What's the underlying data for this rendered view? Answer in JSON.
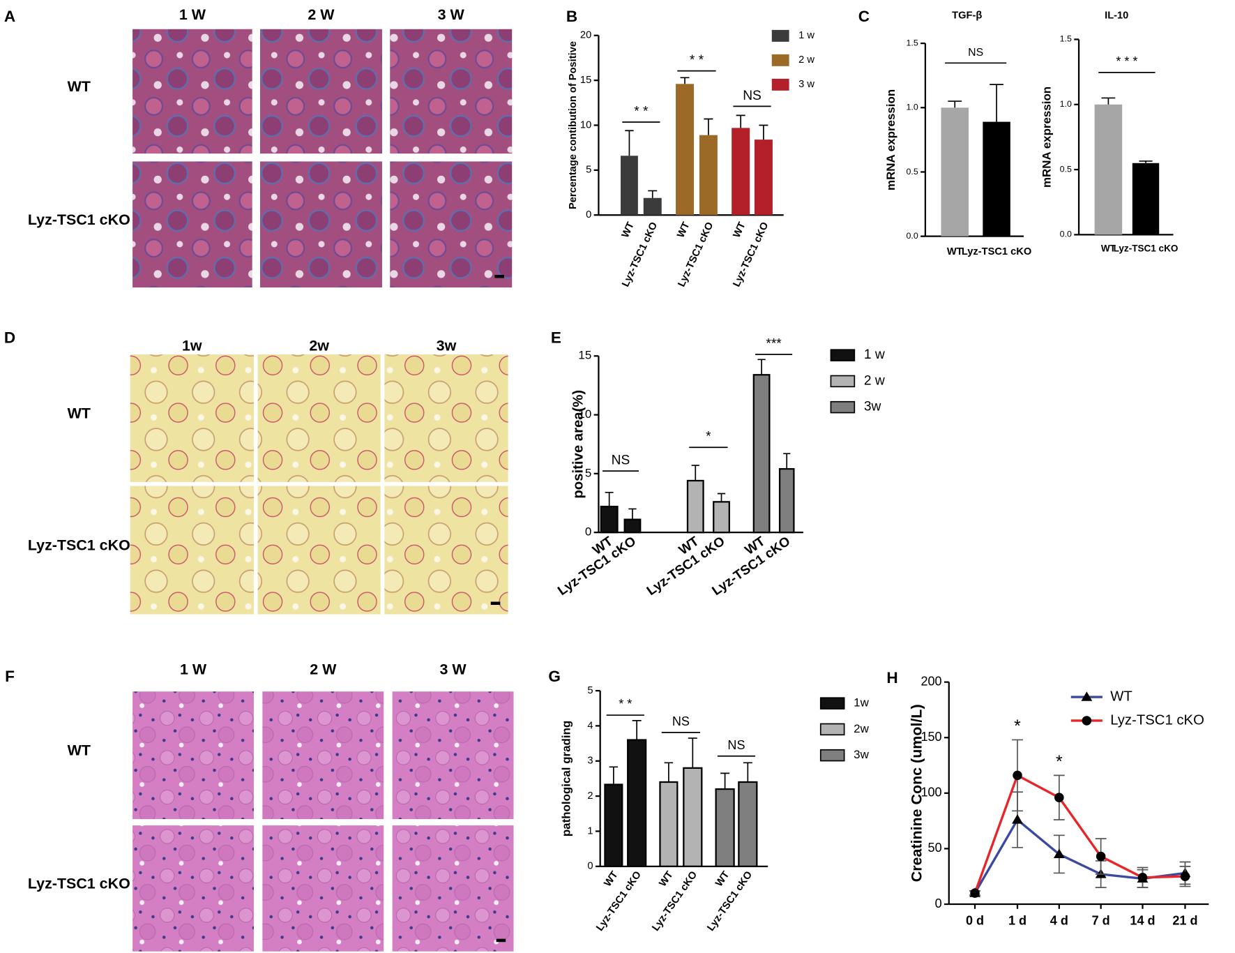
{
  "micrographs": [
    {
      "letter": "A",
      "columns": [
        "1 W",
        "2 W",
        "3 W"
      ],
      "rows": [
        "WT",
        "Lyz-TSC1 cKO"
      ]
    },
    {
      "letter": "D",
      "columns": [
        "1w",
        "2w",
        "3w"
      ],
      "rows": [
        "WT",
        "Lyz-TSC1 cKO"
      ]
    },
    {
      "letter": "F",
      "columns": [
        "1 W",
        "2 W",
        "3 W"
      ],
      "rows": [
        "WT",
        "Lyz-TSC1 cKO"
      ]
    }
  ],
  "chart_data": [
    {
      "type": "groupbar",
      "letter": "B",
      "ylabel": "Percentage contibution of Positive",
      "ylim": [
        0,
        20
      ],
      "yticks": [
        0,
        5,
        10,
        15,
        20
      ],
      "series": [
        {
          "name": "1 w",
          "color": "#3b3b3b",
          "categories": [
            "WT",
            "Lyz-TSC1 cKO"
          ],
          "values": [
            6.6,
            1.9
          ],
          "errors": [
            2.8,
            0.8
          ]
        },
        {
          "name": "2 w",
          "color": "#9b6a27",
          "categories": [
            "WT",
            "Lyz-TSC1 cKO"
          ],
          "values": [
            14.6,
            8.9
          ],
          "errors": [
            0.7,
            1.8
          ]
        },
        {
          "name": "3 w",
          "color": "#b3202a",
          "categories": [
            "WT",
            "Lyz-TSC1 cKO"
          ],
          "values": [
            9.7,
            8.4
          ],
          "errors": [
            1.4,
            1.6
          ]
        }
      ],
      "annotations": [
        "* *",
        "* *",
        "NS"
      ]
    },
    {
      "type": "bar",
      "letter": "C",
      "title": "TGF-β",
      "ylabel": "mRNA expression",
      "ylim": [
        0,
        1.5
      ],
      "yticks": [
        {
          "value": 0,
          "label": "0.0"
        },
        {
          "value": 0.5,
          "label": "0.5"
        },
        {
          "value": 1,
          "label": "1.0"
        },
        {
          "value": 1.5,
          "label": "1.5"
        }
      ],
      "categories": [
        "WT",
        "Lyz-TSC1 cKO"
      ],
      "values": [
        1.0,
        0.89
      ],
      "errors": [
        0.05,
        0.29
      ],
      "colors": [
        "#a6a6a6",
        "#000000"
      ],
      "annotations": [
        "NS"
      ]
    },
    {
      "type": "bar",
      "title": "IL-10",
      "ylabel": "mRNA expression",
      "ylim": [
        0,
        1.5
      ],
      "yticks": [
        {
          "value": 0,
          "label": "0.0"
        },
        {
          "value": 0.5,
          "label": "0.5"
        },
        {
          "value": 1,
          "label": "1.0"
        },
        {
          "value": 1.5,
          "label": "1.5"
        }
      ],
      "categories": [
        "WT",
        "Lyz-TSC1 cKO"
      ],
      "values": [
        1.0,
        0.55
      ],
      "errors": [
        0.05,
        0.015
      ],
      "colors": [
        "#a6a6a6",
        "#000000"
      ],
      "annotations": [
        "* * *"
      ]
    },
    {
      "type": "groupbar",
      "letter": "E",
      "ylabel": "positive area(%)",
      "edgecolor": "#000000",
      "ylim": [
        0,
        15
      ],
      "yticks": [
        0,
        5,
        10,
        15
      ],
      "series": [
        {
          "name": "1 w",
          "color": "#111111",
          "categories": [
            "WT",
            "Lyz-TSC1 cKO"
          ],
          "values": [
            2.2,
            1.1
          ],
          "errors": [
            1.2,
            0.9
          ]
        },
        {
          "name": "2 w",
          "color": "#b3b3b3",
          "categories": [
            "WT",
            "Lyz-TSC1 cKO"
          ],
          "values": [
            4.4,
            2.6
          ],
          "errors": [
            1.3,
            0.7
          ]
        },
        {
          "name": "3w",
          "color": "#7f7f7f",
          "categories": [
            "WT",
            "Lyz-TSC1 cKO"
          ],
          "values": [
            13.4,
            5.4
          ],
          "errors": [
            1.3,
            1.3
          ]
        }
      ],
      "annotations": [
        "NS",
        "*",
        "***"
      ]
    },
    {
      "type": "groupbar",
      "letter": "G",
      "ylabel": "pathological grading",
      "edgecolor": "#000000",
      "ylim": [
        0,
        5
      ],
      "yticks": [
        0,
        1,
        2,
        3,
        4,
        5
      ],
      "series": [
        {
          "name": "1w",
          "color": "#111111",
          "categories": [
            "WT",
            "Lyz-TSC1 cKO"
          ],
          "values": [
            2.33,
            3.6
          ],
          "errors": [
            0.5,
            0.55
          ]
        },
        {
          "name": "2w",
          "color": "#b3b3b3",
          "categories": [
            "WT",
            "Lyz-TSC1 cKO"
          ],
          "values": [
            2.4,
            2.8
          ],
          "errors": [
            0.55,
            0.85
          ]
        },
        {
          "name": "3w",
          "color": "#7f7f7f",
          "categories": [
            "WT",
            "Lyz-TSC1 cKO"
          ],
          "values": [
            2.2,
            2.4
          ],
          "errors": [
            0.45,
            0.55
          ]
        }
      ],
      "annotations": [
        "* *",
        "NS",
        "NS"
      ]
    },
    {
      "type": "line",
      "letter": "H",
      "ylabel": "Creatinine Conc (umol/L)",
      "ylim": [
        0,
        200
      ],
      "yticks": [
        0,
        50,
        100,
        150,
        200
      ],
      "categories": [
        "0 d",
        "1 d",
        "4 d",
        "7 d",
        "14 d",
        "21 d"
      ],
      "series": [
        {
          "name": "WT",
          "color": "#3a4aa3",
          "marker": "triangle",
          "marker_color": "#000000",
          "values": [
            10,
            76,
            45,
            27,
            23,
            28
          ],
          "errors": [
            2,
            25,
            17,
            12,
            8,
            10
          ]
        },
        {
          "name": "Lyz-TSC1 cKO",
          "color": "#e8262a",
          "marker": "circle",
          "marker_color": "#000000",
          "values": [
            10,
            116,
            96,
            43,
            24,
            25
          ],
          "errors": [
            2,
            32,
            20,
            16,
            9,
            9
          ]
        }
      ],
      "annotations": [
        "*",
        "*"
      ]
    }
  ]
}
